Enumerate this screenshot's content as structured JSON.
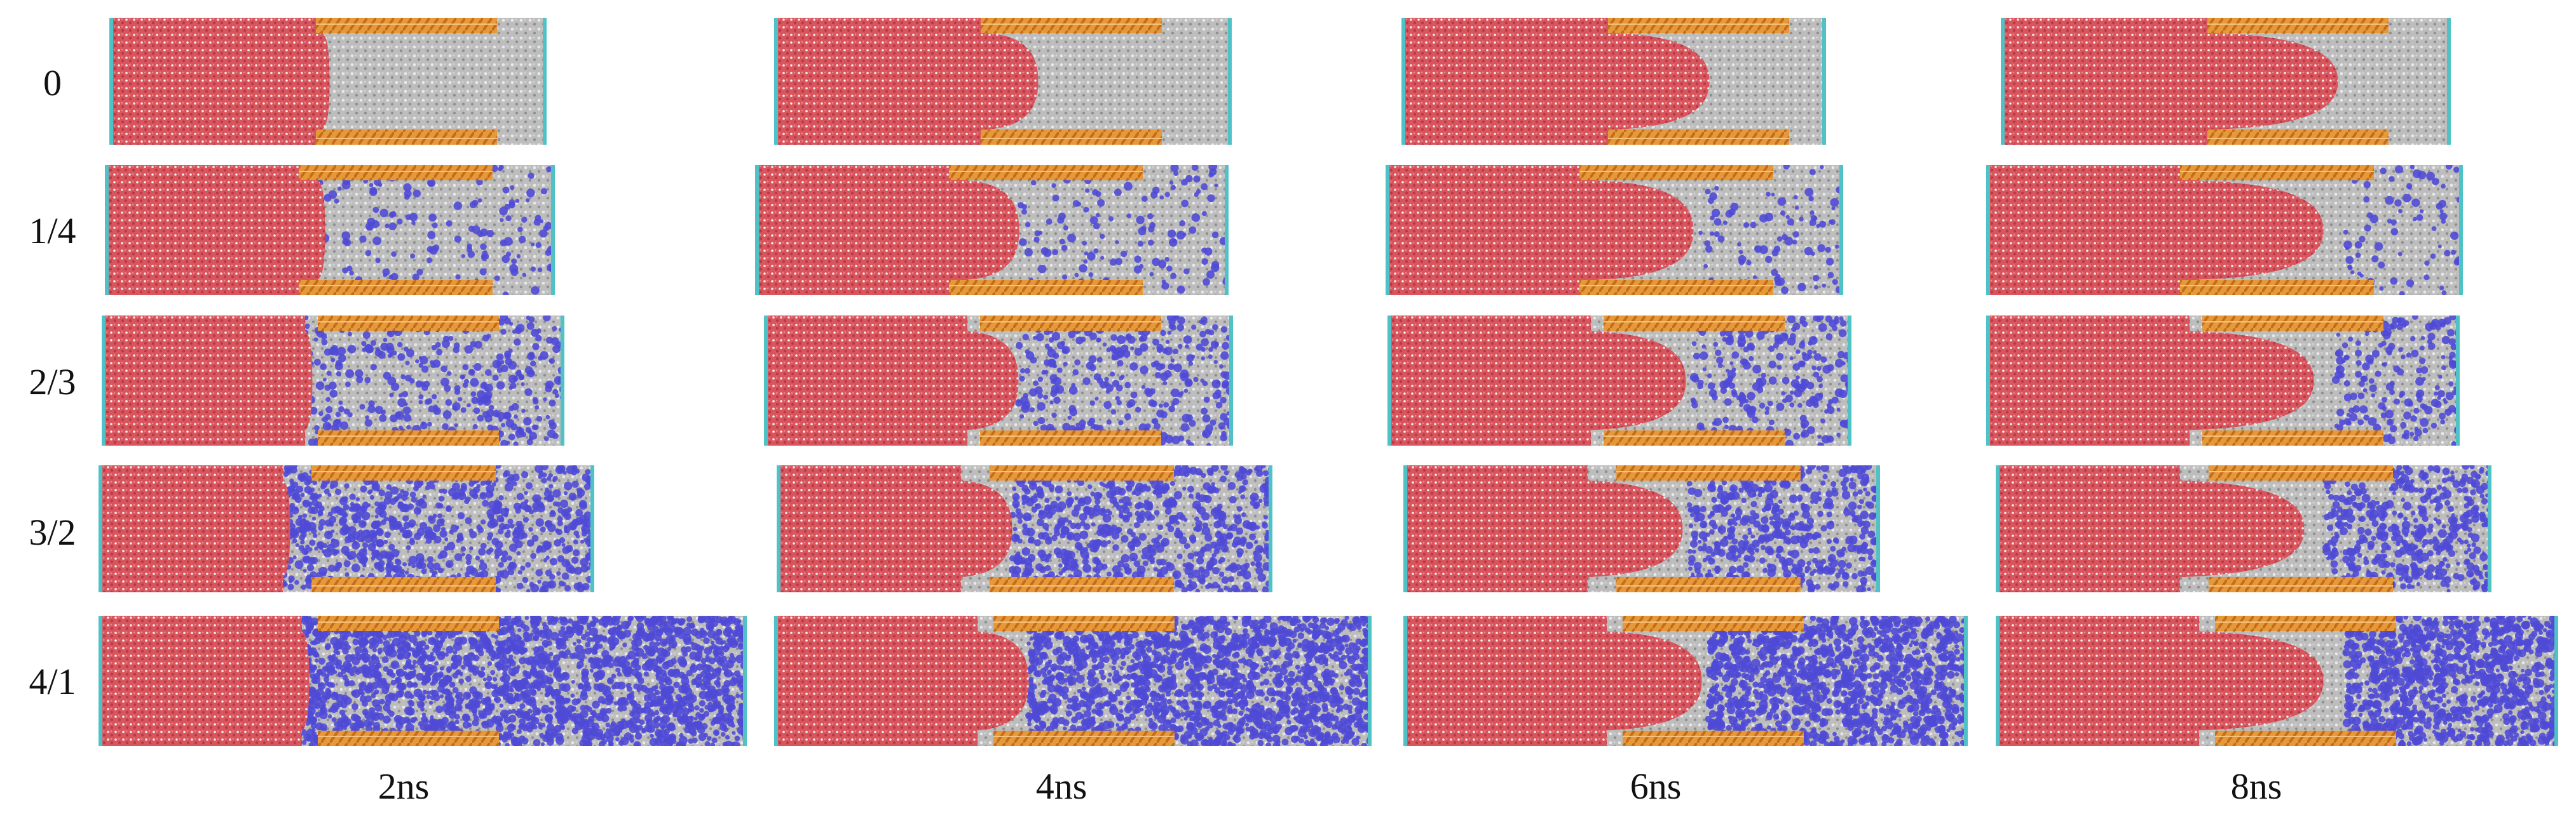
{
  "row_labels": [
    "0",
    "1/4",
    "2/3",
    "3/2",
    "4/1"
  ],
  "col_labels": [
    "2ns",
    "4ns",
    "6ns",
    "8ns"
  ],
  "colors": {
    "liquid": "#d9555d",
    "solvent": "#bdbdbd",
    "solute": "#4f4ad6",
    "wall": "#e59a3a",
    "wall_stripe": "#c66a1c",
    "boundary": "#4fc2c7"
  },
  "solute_level": [
    0,
    0.12,
    0.28,
    0.5,
    0.85
  ],
  "intrusion_level": [
    0.05,
    0.35,
    0.65,
    0.85
  ]
}
